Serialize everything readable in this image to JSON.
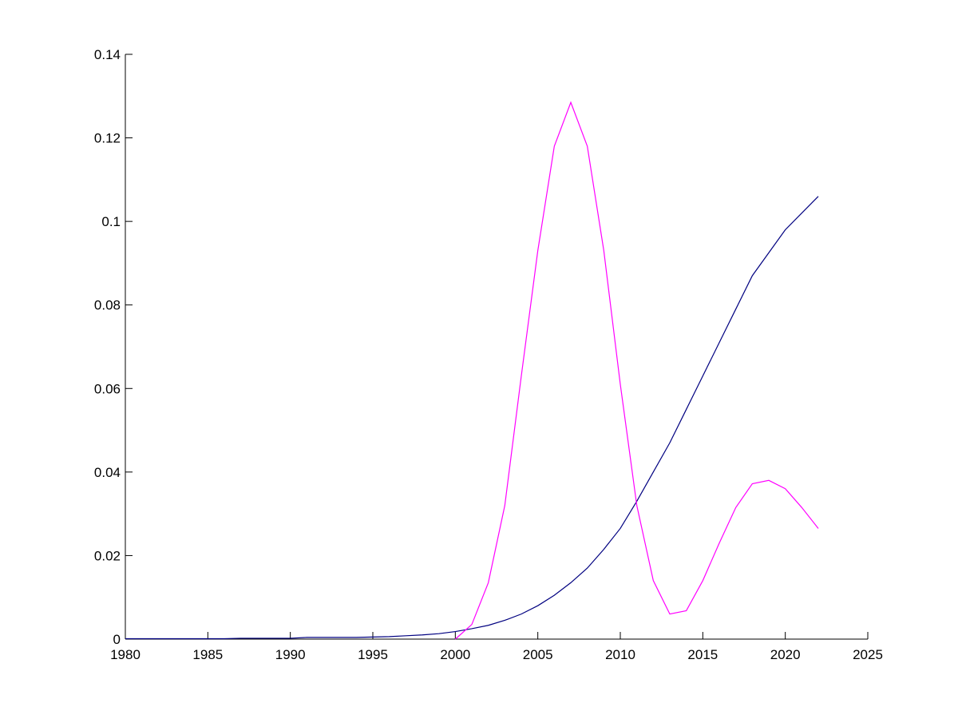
{
  "chart_data": {
    "type": "line",
    "x": [
      1980,
      1981,
      1982,
      1983,
      1984,
      1985,
      1986,
      1987,
      1988,
      1989,
      1990,
      1991,
      1992,
      1993,
      1994,
      1995,
      1996,
      1997,
      1998,
      1999,
      2000,
      2001,
      2002,
      2003,
      2004,
      2005,
      2006,
      2007,
      2008,
      2009,
      2010,
      2011,
      2012,
      2013,
      2014,
      2015,
      2016,
      2017,
      2018,
      2019,
      2020,
      2021,
      2022
    ],
    "series": [
      {
        "color": "#000080",
        "values": [
          0.0001,
          0.0001,
          0.0001,
          0.0001,
          0.0001,
          0.0001,
          0.0001,
          0.0002,
          0.0002,
          0.0002,
          0.0002,
          0.0004,
          0.0004,
          0.0004,
          0.0004,
          0.0005,
          0.0006,
          0.0008,
          0.001,
          0.0013,
          0.0018,
          0.0025,
          0.0033,
          0.0045,
          0.006,
          0.008,
          0.0105,
          0.0135,
          0.017,
          0.0215,
          0.0265,
          0.033,
          0.04,
          0.047,
          0.055,
          0.063,
          0.071,
          0.079,
          0.087,
          0.0925,
          0.098,
          0.102,
          0.106
        ]
      },
      {
        "color": "#ff00ff",
        "values": [
          null,
          null,
          null,
          null,
          null,
          null,
          null,
          null,
          null,
          null,
          null,
          null,
          null,
          null,
          null,
          null,
          null,
          null,
          null,
          null,
          0,
          0.0035,
          0.0135,
          0.032,
          0.063,
          0.093,
          0.118,
          0.1285,
          0.118,
          0.093,
          0.061,
          0.032,
          0.014,
          0.006,
          0.0068,
          0.014,
          0.023,
          0.0315,
          0.0372,
          0.038,
          0.036,
          0.0315,
          0.0265
        ]
      }
    ],
    "xlim": [
      1980,
      2025
    ],
    "xticks": [
      1980,
      1985,
      1990,
      1995,
      2000,
      2005,
      2010,
      2015,
      2020,
      2025
    ],
    "ylim": [
      0,
      0.14
    ],
    "yticks": [
      0,
      0.02,
      0.04,
      0.06,
      0.08,
      0.1,
      0.12,
      0.14
    ]
  }
}
